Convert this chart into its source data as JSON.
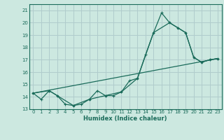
{
  "title": "",
  "xlabel": "Humidex (Indice chaleur)",
  "bg_color": "#cce8e0",
  "grid_color": "#b0cccc",
  "line_color": "#1a6b5a",
  "xlim": [
    -0.5,
    23.5
  ],
  "ylim": [
    13,
    21.5
  ],
  "xticks": [
    0,
    1,
    2,
    3,
    4,
    5,
    6,
    7,
    8,
    9,
    10,
    11,
    12,
    13,
    14,
    15,
    16,
    17,
    18,
    19,
    20,
    21,
    22,
    23
  ],
  "yticks": [
    13,
    14,
    15,
    16,
    17,
    18,
    19,
    20,
    21
  ],
  "line1_x": [
    0,
    1,
    2,
    3,
    4,
    5,
    6,
    7,
    8,
    9,
    10,
    11,
    12,
    13,
    14,
    15,
    16,
    17,
    18,
    19,
    20,
    21,
    22,
    23
  ],
  "line1_y": [
    14.3,
    13.8,
    14.5,
    14.1,
    13.4,
    13.3,
    13.4,
    13.8,
    14.5,
    14.1,
    14.1,
    14.4,
    15.3,
    15.5,
    17.4,
    19.2,
    20.8,
    20.0,
    19.6,
    19.2,
    17.2,
    16.8,
    17.0,
    17.1
  ],
  "line2_x": [
    0,
    2,
    3,
    5,
    7,
    9,
    11,
    13,
    15,
    17,
    18,
    19,
    20,
    21,
    22,
    23
  ],
  "line2_y": [
    14.3,
    14.5,
    14.1,
    13.3,
    13.8,
    14.1,
    14.4,
    15.5,
    19.2,
    20.0,
    19.6,
    19.2,
    17.2,
    16.8,
    17.0,
    17.1
  ],
  "line3_x": [
    0,
    23
  ],
  "line3_y": [
    14.3,
    17.1
  ]
}
